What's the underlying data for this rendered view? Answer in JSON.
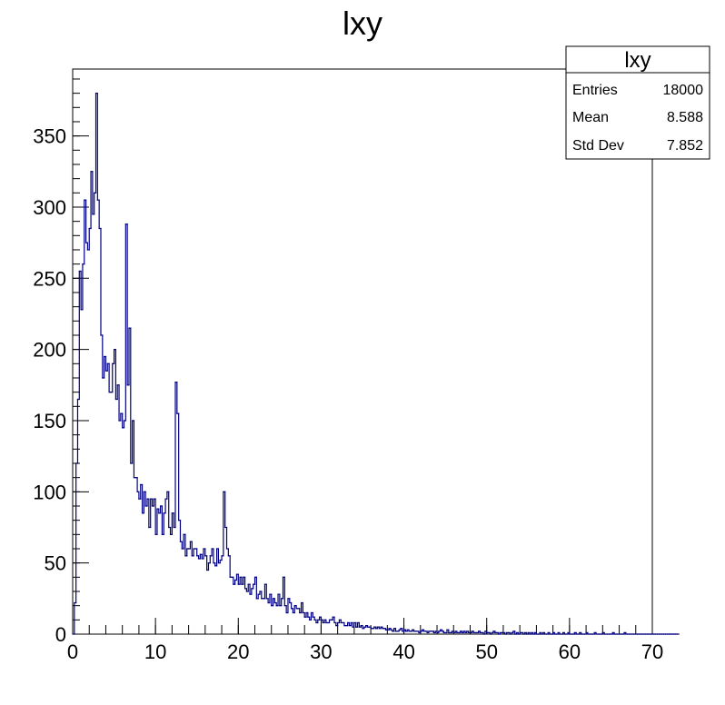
{
  "chart_data": {
    "type": "histogram",
    "title": "lxy",
    "xlabel": "",
    "ylabel": "",
    "xlim": [
      0,
      70
    ],
    "ylim": [
      0,
      397
    ],
    "x_ticks": [
      0,
      10,
      20,
      30,
      40,
      50,
      60,
      70
    ],
    "y_ticks": [
      0,
      50,
      100,
      150,
      200,
      250,
      300,
      350
    ],
    "bin_width": 0.2,
    "line_color": "#000080",
    "grid": false,
    "legend": "none",
    "stats_box": {
      "position": "top-right",
      "title": "lxy",
      "rows": [
        {
          "label": "Entries",
          "value": "18000"
        },
        {
          "label": "Mean",
          "value": "8.588"
        },
        {
          "label": "Std Dev",
          "value": "7.852"
        }
      ]
    },
    "series": [
      {
        "values": [
          0,
          22,
          120,
          165,
          255,
          228,
          260,
          305,
          275,
          270,
          285,
          325,
          295,
          310,
          380,
          305,
          285,
          210,
          180,
          195,
          185,
          190,
          170,
          170,
          190,
          200,
          165,
          175,
          150,
          155,
          145,
          150,
          288,
          175,
          215,
          120,
          150,
          110,
          110,
          100,
          95,
          105,
          85,
          100,
          90,
          95,
          75,
          95,
          90,
          95,
          70,
          88,
          85,
          90,
          70,
          85,
          95,
          100,
          75,
          70,
          85,
          75,
          177,
          155,
          80,
          65,
          60,
          70,
          55,
          60,
          60,
          65,
          55,
          60,
          60,
          55,
          53,
          56,
          53,
          60,
          55,
          45,
          50,
          55,
          60,
          50,
          48,
          60,
          50,
          52,
          55,
          100,
          75,
          60,
          55,
          40,
          40,
          35,
          38,
          42,
          35,
          40,
          35,
          40,
          32,
          30,
          35,
          28,
          32,
          35,
          40,
          25,
          28,
          30,
          25,
          25,
          35,
          25,
          22,
          28,
          20,
          25,
          22,
          20,
          28,
          20,
          25,
          40,
          20,
          15,
          25,
          22,
          18,
          15,
          20,
          18,
          18,
          15,
          22,
          15,
          12,
          15,
          12,
          10,
          15,
          12,
          10,
          8,
          10,
          12,
          10,
          8,
          10,
          8,
          8,
          10,
          10,
          12,
          8,
          6,
          8,
          10,
          8,
          8,
          6,
          6,
          8,
          6,
          8,
          5,
          8,
          5,
          8,
          5,
          6,
          4,
          5,
          6,
          5,
          5,
          4,
          4,
          5,
          4,
          5,
          4,
          5,
          4,
          4,
          3,
          3,
          4,
          3,
          2,
          4,
          2,
          2,
          3,
          4,
          2,
          3,
          2,
          3,
          2,
          2,
          3,
          2,
          2,
          2,
          1,
          2,
          3,
          2,
          2,
          1,
          2,
          2,
          2,
          1,
          2,
          1,
          2,
          3,
          2,
          1,
          1,
          3,
          1,
          1,
          2,
          1,
          2,
          1,
          1,
          2,
          1,
          2,
          1,
          2,
          1,
          1,
          2,
          1,
          1,
          1,
          2,
          1,
          1,
          0,
          2,
          1,
          1,
          0,
          1,
          2,
          1,
          1,
          0,
          1,
          1,
          1,
          0,
          1,
          1,
          0,
          1,
          2,
          0,
          1,
          0,
          1,
          1,
          0,
          1,
          0,
          1,
          0,
          1,
          0,
          1,
          0,
          0,
          1,
          0,
          1,
          0,
          0,
          1,
          0,
          0,
          1,
          0,
          0,
          1,
          0,
          0,
          1,
          0,
          0,
          1,
          0,
          0,
          0,
          1,
          0,
          0,
          1,
          0,
          0,
          0,
          1,
          0,
          0,
          0,
          0,
          1,
          0,
          0,
          0,
          0,
          1,
          0,
          0,
          0,
          0,
          0,
          1,
          0,
          0,
          0,
          0,
          0,
          0,
          1,
          0,
          0,
          0,
          0,
          0,
          0,
          0,
          0,
          0,
          0,
          0,
          0,
          0,
          0,
          0,
          0,
          0,
          0,
          0,
          0,
          0,
          0,
          0,
          0,
          0,
          0,
          0,
          0,
          0,
          0,
          0,
          0
        ]
      }
    ]
  }
}
